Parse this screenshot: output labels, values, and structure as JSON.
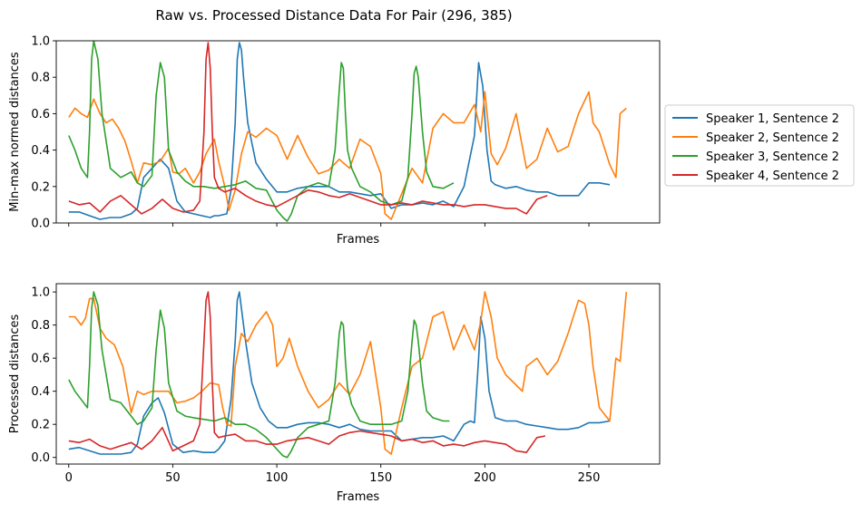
{
  "figure_title": "Raw vs. Processed Distance Data For Pair (296, 385)",
  "colors": {
    "s1": "#1f77b4",
    "s2": "#ff7f0e",
    "s3": "#2ca02c",
    "s4": "#d62728"
  },
  "legend": [
    "Speaker 1, Sentence 2",
    "Speaker 2, Sentence 2",
    "Speaker 3, Sentence 2",
    "Speaker 4, Sentence 2"
  ],
  "chart_data": [
    {
      "type": "line",
      "title": "",
      "xlabel": "Frames",
      "ylabel": "Min-max normed distances",
      "xlim": [
        -6,
        284
      ],
      "ylim": [
        0,
        1
      ],
      "xticks": [
        0,
        50,
        100,
        150,
        200,
        250
      ],
      "xtick_labels_visible": false,
      "yticks": [
        "0.0",
        "0.2",
        "0.4",
        "0.6",
        "0.8",
        "1.0"
      ],
      "legend_position": "right",
      "series": [
        {
          "name": "Speaker 1, Sentence 2",
          "color_key": "s1",
          "x": [
            0,
            5,
            10,
            15,
            20,
            25,
            30,
            33,
            36,
            40,
            44,
            48,
            52,
            56,
            60,
            64,
            68,
            70,
            72,
            76,
            78,
            80,
            81,
            82,
            83,
            84,
            86,
            90,
            95,
            100,
            105,
            110,
            115,
            120,
            125,
            130,
            135,
            140,
            145,
            150,
            155,
            160,
            165,
            170,
            175,
            180,
            185,
            190,
            195,
            197,
            199,
            201,
            203,
            205,
            210,
            215,
            220,
            225,
            230,
            235,
            240,
            245,
            250,
            255,
            260
          ],
          "y": [
            0.06,
            0.06,
            0.04,
            0.02,
            0.03,
            0.03,
            0.05,
            0.08,
            0.25,
            0.3,
            0.35,
            0.3,
            0.12,
            0.06,
            0.05,
            0.04,
            0.03,
            0.04,
            0.04,
            0.05,
            0.18,
            0.55,
            0.9,
            0.99,
            0.95,
            0.8,
            0.55,
            0.33,
            0.24,
            0.17,
            0.17,
            0.19,
            0.2,
            0.2,
            0.2,
            0.17,
            0.17,
            0.16,
            0.15,
            0.16,
            0.08,
            0.1,
            0.1,
            0.11,
            0.1,
            0.12,
            0.09,
            0.2,
            0.48,
            0.88,
            0.75,
            0.4,
            0.23,
            0.21,
            0.19,
            0.2,
            0.18,
            0.17,
            0.17,
            0.15,
            0.15,
            0.15,
            0.22,
            0.22,
            0.21
          ]
        },
        {
          "name": "Speaker 2, Sentence 2",
          "color_key": "s2",
          "x": [
            0,
            3,
            6,
            9,
            12,
            15,
            18,
            21,
            24,
            27,
            30,
            33,
            36,
            40,
            44,
            48,
            50,
            53,
            56,
            60,
            63,
            66,
            70,
            72,
            75,
            77,
            80,
            83,
            86,
            90,
            95,
            100,
            105,
            110,
            115,
            120,
            125,
            130,
            135,
            140,
            145,
            150,
            152,
            155,
            160,
            165,
            170,
            175,
            180,
            185,
            190,
            195,
            198,
            200,
            203,
            206,
            210,
            215,
            220,
            225,
            230,
            235,
            240,
            245,
            250,
            252,
            255,
            260,
            263,
            265,
            268
          ],
          "y": [
            0.58,
            0.63,
            0.6,
            0.58,
            0.68,
            0.6,
            0.55,
            0.57,
            0.52,
            0.45,
            0.34,
            0.22,
            0.33,
            0.32,
            0.34,
            0.41,
            0.28,
            0.27,
            0.3,
            0.22,
            0.28,
            0.38,
            0.46,
            0.34,
            0.2,
            0.07,
            0.18,
            0.38,
            0.5,
            0.47,
            0.52,
            0.48,
            0.35,
            0.48,
            0.36,
            0.27,
            0.29,
            0.35,
            0.3,
            0.46,
            0.42,
            0.27,
            0.05,
            0.02,
            0.16,
            0.3,
            0.22,
            0.52,
            0.6,
            0.55,
            0.55,
            0.65,
            0.5,
            0.72,
            0.38,
            0.32,
            0.41,
            0.6,
            0.3,
            0.35,
            0.52,
            0.39,
            0.42,
            0.6,
            0.72,
            0.55,
            0.5,
            0.32,
            0.25,
            0.6,
            0.63
          ]
        },
        {
          "name": "Speaker 3, Sentence 2",
          "color_key": "s3",
          "x": [
            0,
            3,
            6,
            9,
            10,
            11,
            12,
            14,
            16,
            20,
            25,
            30,
            33,
            36,
            40,
            42,
            44,
            46,
            48,
            52,
            56,
            60,
            65,
            70,
            75,
            80,
            85,
            90,
            95,
            100,
            103,
            105,
            107,
            110,
            115,
            120,
            125,
            128,
            130,
            131,
            132,
            133,
            134,
            136,
            140,
            145,
            150,
            155,
            160,
            163,
            165,
            166,
            167,
            168,
            170,
            172,
            175,
            180,
            185
          ],
          "y": [
            0.48,
            0.4,
            0.3,
            0.25,
            0.5,
            0.9,
            1.0,
            0.9,
            0.6,
            0.3,
            0.25,
            0.28,
            0.22,
            0.2,
            0.26,
            0.7,
            0.88,
            0.8,
            0.4,
            0.28,
            0.23,
            0.2,
            0.2,
            0.19,
            0.2,
            0.21,
            0.23,
            0.19,
            0.18,
            0.07,
            0.03,
            0.01,
            0.05,
            0.15,
            0.2,
            0.22,
            0.2,
            0.4,
            0.73,
            0.88,
            0.85,
            0.6,
            0.4,
            0.3,
            0.2,
            0.17,
            0.12,
            0.1,
            0.12,
            0.25,
            0.6,
            0.82,
            0.86,
            0.8,
            0.5,
            0.28,
            0.2,
            0.19,
            0.22
          ]
        },
        {
          "name": "Speaker 4, Sentence 2",
          "color_key": "s4",
          "x": [
            0,
            5,
            10,
            15,
            20,
            25,
            30,
            35,
            40,
            45,
            50,
            55,
            60,
            63,
            65,
            66,
            67,
            68,
            69,
            70,
            72,
            75,
            80,
            85,
            90,
            95,
            100,
            105,
            110,
            115,
            120,
            125,
            130,
            135,
            140,
            145,
            150,
            155,
            160,
            165,
            170,
            175,
            180,
            185,
            190,
            195,
            200,
            205,
            210,
            215,
            220,
            225,
            230
          ],
          "y": [
            0.12,
            0.1,
            0.11,
            0.06,
            0.12,
            0.15,
            0.1,
            0.05,
            0.08,
            0.13,
            0.08,
            0.06,
            0.07,
            0.12,
            0.5,
            0.9,
            0.99,
            0.85,
            0.5,
            0.25,
            0.19,
            0.17,
            0.19,
            0.15,
            0.12,
            0.1,
            0.09,
            0.12,
            0.15,
            0.18,
            0.17,
            0.15,
            0.14,
            0.16,
            0.14,
            0.12,
            0.1,
            0.1,
            0.11,
            0.1,
            0.12,
            0.11,
            0.1,
            0.1,
            0.09,
            0.1,
            0.1,
            0.09,
            0.08,
            0.08,
            0.05,
            0.13,
            0.15
          ]
        }
      ]
    },
    {
      "type": "line",
      "title": "",
      "xlabel": "Frames",
      "ylabel": "Processed distances",
      "xlim": [
        -6,
        284
      ],
      "ylim": [
        -0.04,
        1.05
      ],
      "xticks": [
        0,
        50,
        100,
        150,
        200,
        250
      ],
      "xtick_labels_visible": true,
      "yticks": [
        "0.0",
        "0.2",
        "0.4",
        "0.6",
        "0.8",
        "1.0"
      ],
      "series": [
        {
          "name": "Speaker 1, Sentence 2",
          "color_key": "s1",
          "x": [
            0,
            5,
            10,
            15,
            20,
            25,
            30,
            33,
            36,
            40,
            43,
            46,
            50,
            55,
            60,
            65,
            70,
            72,
            75,
            78,
            80,
            81,
            82,
            83,
            85,
            88,
            92,
            96,
            100,
            105,
            110,
            115,
            120,
            125,
            130,
            135,
            140,
            145,
            150,
            155,
            160,
            165,
            170,
            175,
            180,
            185,
            190,
            193,
            195,
            197,
            198,
            200,
            202,
            205,
            210,
            215,
            220,
            225,
            230,
            235,
            240,
            245,
            250,
            255,
            260
          ],
          "y": [
            0.05,
            0.06,
            0.04,
            0.02,
            0.02,
            0.02,
            0.03,
            0.08,
            0.25,
            0.33,
            0.36,
            0.27,
            0.08,
            0.03,
            0.04,
            0.03,
            0.03,
            0.05,
            0.1,
            0.35,
            0.7,
            0.95,
            1.0,
            0.9,
            0.7,
            0.45,
            0.3,
            0.22,
            0.18,
            0.18,
            0.2,
            0.21,
            0.21,
            0.2,
            0.18,
            0.2,
            0.17,
            0.16,
            0.16,
            0.16,
            0.1,
            0.11,
            0.12,
            0.12,
            0.13,
            0.1,
            0.2,
            0.22,
            0.21,
            0.6,
            0.85,
            0.72,
            0.4,
            0.24,
            0.22,
            0.22,
            0.2,
            0.19,
            0.18,
            0.17,
            0.17,
            0.18,
            0.21,
            0.21,
            0.22
          ]
        },
        {
          "name": "Speaker 2, Sentence 2",
          "color_key": "s2",
          "x": [
            0,
            3,
            6,
            8,
            10,
            12,
            15,
            18,
            22,
            26,
            30,
            33,
            36,
            40,
            44,
            48,
            52,
            56,
            60,
            64,
            68,
            72,
            74,
            76,
            78,
            80,
            83,
            86,
            90,
            95,
            98,
            100,
            103,
            106,
            110,
            115,
            120,
            125,
            130,
            135,
            140,
            145,
            150,
            152,
            155,
            160,
            165,
            170,
            175,
            180,
            185,
            190,
            195,
            198,
            200,
            203,
            206,
            210,
            214,
            218,
            220,
            225,
            230,
            235,
            240,
            245,
            248,
            250,
            252,
            255,
            260,
            263,
            265,
            268
          ],
          "y": [
            0.85,
            0.85,
            0.8,
            0.84,
            0.96,
            0.96,
            0.78,
            0.72,
            0.68,
            0.55,
            0.27,
            0.4,
            0.38,
            0.4,
            0.4,
            0.4,
            0.33,
            0.34,
            0.36,
            0.4,
            0.45,
            0.44,
            0.3,
            0.2,
            0.19,
            0.55,
            0.75,
            0.7,
            0.8,
            0.88,
            0.8,
            0.55,
            0.6,
            0.72,
            0.55,
            0.4,
            0.3,
            0.35,
            0.45,
            0.38,
            0.5,
            0.7,
            0.3,
            0.05,
            0.02,
            0.3,
            0.55,
            0.6,
            0.85,
            0.88,
            0.65,
            0.8,
            0.65,
            0.82,
            1.0,
            0.85,
            0.6,
            0.5,
            0.45,
            0.4,
            0.55,
            0.6,
            0.5,
            0.58,
            0.75,
            0.95,
            0.93,
            0.8,
            0.55,
            0.3,
            0.22,
            0.6,
            0.58,
            1.0
          ]
        },
        {
          "name": "Speaker 3, Sentence 2",
          "color_key": "s3",
          "x": [
            0,
            3,
            6,
            9,
            10,
            11,
            12,
            14,
            16,
            20,
            25,
            30,
            33,
            36,
            40,
            42,
            44,
            46,
            48,
            52,
            56,
            60,
            65,
            70,
            75,
            80,
            85,
            90,
            95,
            100,
            103,
            105,
            107,
            110,
            115,
            120,
            125,
            128,
            130,
            131,
            132,
            133,
            134,
            136,
            140,
            145,
            150,
            155,
            160,
            163,
            165,
            166,
            167,
            168,
            170,
            172,
            175,
            180,
            183
          ],
          "y": [
            0.47,
            0.4,
            0.35,
            0.3,
            0.55,
            0.9,
            1.0,
            0.92,
            0.65,
            0.35,
            0.33,
            0.25,
            0.2,
            0.22,
            0.3,
            0.65,
            0.89,
            0.78,
            0.45,
            0.28,
            0.25,
            0.24,
            0.23,
            0.22,
            0.24,
            0.2,
            0.2,
            0.17,
            0.12,
            0.05,
            0.01,
            0.0,
            0.04,
            0.12,
            0.18,
            0.2,
            0.22,
            0.45,
            0.75,
            0.82,
            0.8,
            0.58,
            0.42,
            0.32,
            0.22,
            0.2,
            0.2,
            0.2,
            0.22,
            0.4,
            0.7,
            0.83,
            0.8,
            0.7,
            0.45,
            0.28,
            0.24,
            0.22,
            0.22
          ]
        },
        {
          "name": "Speaker 4, Sentence 2",
          "color_key": "s4",
          "x": [
            0,
            5,
            10,
            15,
            20,
            25,
            30,
            35,
            40,
            45,
            50,
            55,
            60,
            63,
            65,
            66,
            67,
            68,
            69,
            70,
            72,
            75,
            80,
            85,
            90,
            95,
            100,
            105,
            110,
            115,
            120,
            125,
            130,
            135,
            140,
            145,
            150,
            155,
            160,
            165,
            170,
            175,
            180,
            185,
            190,
            195,
            200,
            205,
            210,
            215,
            220,
            225,
            229
          ],
          "y": [
            0.1,
            0.09,
            0.11,
            0.07,
            0.05,
            0.07,
            0.09,
            0.05,
            0.1,
            0.18,
            0.04,
            0.07,
            0.1,
            0.2,
            0.7,
            0.95,
            1.0,
            0.85,
            0.45,
            0.15,
            0.12,
            0.13,
            0.14,
            0.1,
            0.1,
            0.08,
            0.08,
            0.1,
            0.11,
            0.12,
            0.1,
            0.08,
            0.13,
            0.15,
            0.16,
            0.15,
            0.14,
            0.13,
            0.1,
            0.11,
            0.09,
            0.1,
            0.07,
            0.08,
            0.07,
            0.09,
            0.1,
            0.09,
            0.08,
            0.04,
            0.03,
            0.12,
            0.13
          ]
        }
      ]
    }
  ]
}
